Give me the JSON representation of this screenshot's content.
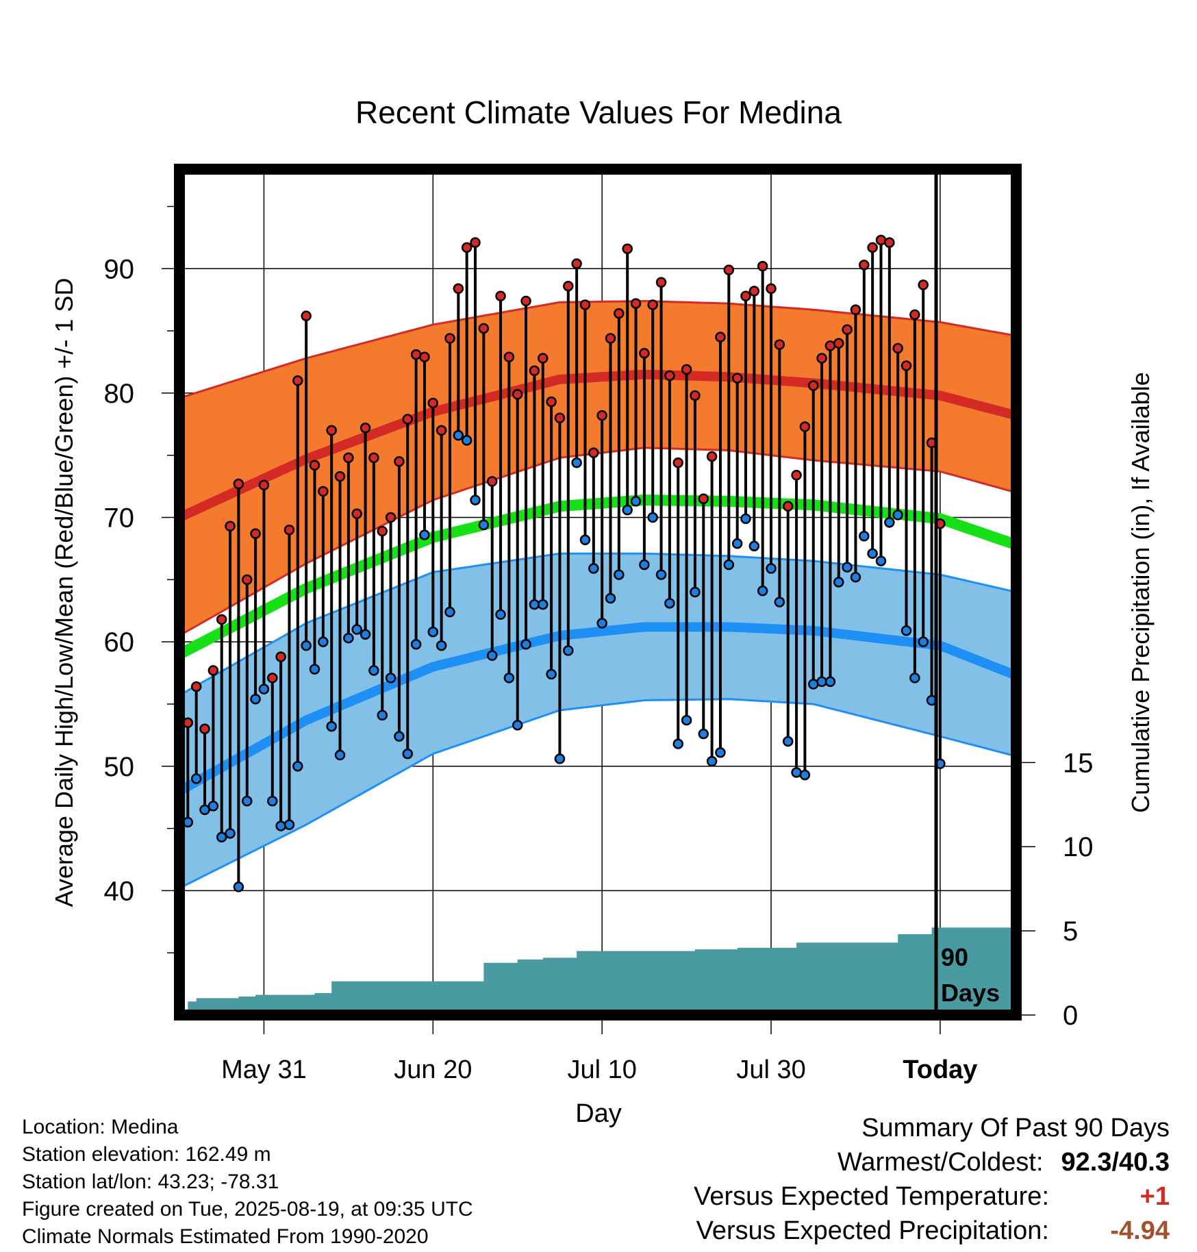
{
  "title": "Recent Climate Values For Medina",
  "y_label_left": "Average Daily High/Low/Mean (Red/Blue/Green) +/- 1 SD",
  "y_label_right": "Cumulative Precipitation (in), If Available",
  "x_label": "Day",
  "period_label": [
    "90",
    "Days"
  ],
  "info": {
    "location": "Location: Medina",
    "elevation": "Station elevation: 162.49 m",
    "latlon": "Station lat/lon: 43.23; -78.31",
    "created": "Figure created on Tue, 2025-08-19, at 09:35 UTC",
    "normals": "Climate Normals Estimated From 1990-2020"
  },
  "summary": {
    "heading": "Summary Of Past 90 Days",
    "warmest_coldest_label": "Warmest/Coldest:",
    "warmest_coldest_value": "92.3/40.3",
    "temp_label": "Versus Expected Temperature:",
    "temp_value": "+1",
    "precip_label": "Versus Expected Precipitation:",
    "precip_value": "-4.94"
  },
  "colors": {
    "high_band": "#f47a2e",
    "high_line": "#d42a26",
    "low_band": "#82c0e8",
    "low_line": "#1e8ff5",
    "mean_line": "#16e016",
    "precip_fill": "#4a9aa2",
    "high_dot": "#d42a26",
    "low_dot": "#1e7fe0",
    "temp_value": "#d42a26",
    "precip_value": "#a0522d"
  },
  "chart_data": {
    "type": "line",
    "x_unit": "day offset from today (0 = 2025-08-19)",
    "x_range": [
      -90,
      9
    ],
    "y_range_left": [
      30,
      98
    ],
    "y_ticks_left": [
      40,
      50,
      60,
      70,
      80,
      90
    ],
    "y_ticks_right": [
      0,
      5,
      10,
      15
    ],
    "x_ticks": [
      {
        "offset": -80,
        "label": "May 31"
      },
      {
        "offset": -60,
        "label": "Jun 20"
      },
      {
        "offset": -40,
        "label": "Jul 10"
      },
      {
        "offset": -20,
        "label": "Jul 30"
      },
      {
        "offset": 0,
        "label": "Today"
      }
    ],
    "normals": {
      "offsets": [
        -90,
        -75,
        -60,
        -45,
        -35,
        -25,
        -15,
        0,
        9
      ],
      "high_mean": [
        70,
        74.7,
        78.5,
        81.1,
        81.5,
        81.3,
        80.8,
        79.8,
        78.2
      ],
      "high_upper": [
        79.6,
        82.8,
        85.5,
        87.3,
        87.4,
        87.2,
        86.7,
        85.7,
        84.6
      ],
      "high_lower": [
        60.5,
        66.3,
        71.4,
        74.8,
        75.6,
        75.4,
        74.6,
        73.7,
        72.0
      ],
      "low_mean": [
        48,
        53.7,
        58,
        60.5,
        61.2,
        61.2,
        60.9,
        59.7,
        57.3
      ],
      "low_upper": [
        55.7,
        61.5,
        65.6,
        67.1,
        67.1,
        66.9,
        66.5,
        65.4,
        64.0
      ],
      "low_lower": [
        40.2,
        45.3,
        51.0,
        54.5,
        55.3,
        55.4,
        55.0,
        52.4,
        50.8
      ],
      "mean": [
        59,
        64.3,
        68.4,
        70.9,
        71.4,
        71.3,
        71.0,
        69.9,
        67.8
      ]
    },
    "daily_high": [
      53.5,
      56.4,
      53,
      57.7,
      61.8,
      69.3,
      72.7,
      65,
      68.7,
      72.6,
      57.1,
      58.8,
      69,
      81,
      86.2,
      74.2,
      72.1,
      77,
      73.3,
      74.8,
      70.3,
      77.2,
      74.8,
      68.9,
      70,
      74.5,
      77.9,
      83.1,
      82.9,
      79.2,
      77,
      84.4,
      88.4,
      91.7,
      92.1,
      85.2,
      72.9,
      87.8,
      82.9,
      79.9,
      87.4,
      81.8,
      82.8,
      79.3,
      78,
      88.6,
      90.4,
      87.1,
      75.2,
      78.2,
      84.4,
      86.4,
      91.6,
      87.2,
      83.2,
      87.1,
      88.9,
      81.4,
      74.4,
      81.9,
      79.8,
      71.5,
      74.9,
      84.5,
      89.9,
      81.2,
      87.8,
      88.2,
      90.2,
      88.4,
      83.9,
      70.9,
      73.4,
      77.3,
      80.6,
      82.8,
      83.8,
      84,
      85.1,
      86.7,
      90.3,
      91.7,
      92.3,
      92.1,
      83.6,
      82.2,
      86.3,
      88.7,
      76,
      69.5
    ],
    "daily_low": [
      45.5,
      49,
      46.5,
      46.8,
      44.3,
      44.6,
      40.3,
      47.2,
      55.4,
      56.2,
      47.2,
      45.2,
      45.3,
      50,
      59.7,
      57.8,
      60,
      53.2,
      50.9,
      60.3,
      61,
      60.6,
      57.7,
      54.1,
      57.1,
      52.4,
      51,
      59.8,
      68.6,
      60.8,
      59.7,
      62.4,
      76.6,
      76.2,
      71.4,
      69.4,
      58.9,
      62.2,
      57.1,
      53.3,
      59.8,
      63,
      63,
      57.4,
      50.6,
      59.3,
      74.4,
      68.2,
      65.9,
      61.5,
      63.5,
      65.4,
      70.6,
      71.3,
      66.2,
      70,
      65.4,
      63.1,
      51.8,
      53.7,
      64,
      52.6,
      50.4,
      51.1,
      66.2,
      67.9,
      69.9,
      67.7,
      64.1,
      65.9,
      63.2,
      52,
      49.5,
      49.3,
      56.6,
      56.8,
      56.8,
      64.8,
      66,
      65.2,
      68.5,
      67.1,
      66.5,
      69.6,
      70.2,
      60.9,
      57.1,
      60,
      55.3,
      50.2
    ],
    "cumulative_precip": [
      0.0,
      0.8,
      1.0,
      1.0,
      1.0,
      1.0,
      1.0,
      1.1,
      1.1,
      1.2,
      1.2,
      1.2,
      1.2,
      1.2,
      1.2,
      1.2,
      1.3,
      1.3,
      2.0,
      2.0,
      2.0,
      2.0,
      2.0,
      2.0,
      2.0,
      2.0,
      2.0,
      2.0,
      2.0,
      2.0,
      2.0,
      2.0,
      2.0,
      2.0,
      2.0,
      2.0,
      3.1,
      3.1,
      3.1,
      3.1,
      3.3,
      3.3,
      3.3,
      3.4,
      3.4,
      3.4,
      3.4,
      3.8,
      3.8,
      3.8,
      3.8,
      3.8,
      3.8,
      3.8,
      3.8,
      3.8,
      3.8,
      3.8,
      3.8,
      3.8,
      3.8,
      3.9,
      3.9,
      3.9,
      3.9,
      3.9,
      4.0,
      4.0,
      4.0,
      4.0,
      4.0,
      4.0,
      4.0,
      4.3,
      4.3,
      4.3,
      4.3,
      4.3,
      4.3,
      4.3,
      4.3,
      4.3,
      4.3,
      4.3,
      4.3,
      4.8,
      4.8,
      4.8,
      4.8,
      5.2,
      5.2,
      5.2,
      5.2,
      5.2,
      5.2,
      5.2,
      5.2,
      5.2,
      5.2,
      5.2,
      5.2
    ]
  }
}
